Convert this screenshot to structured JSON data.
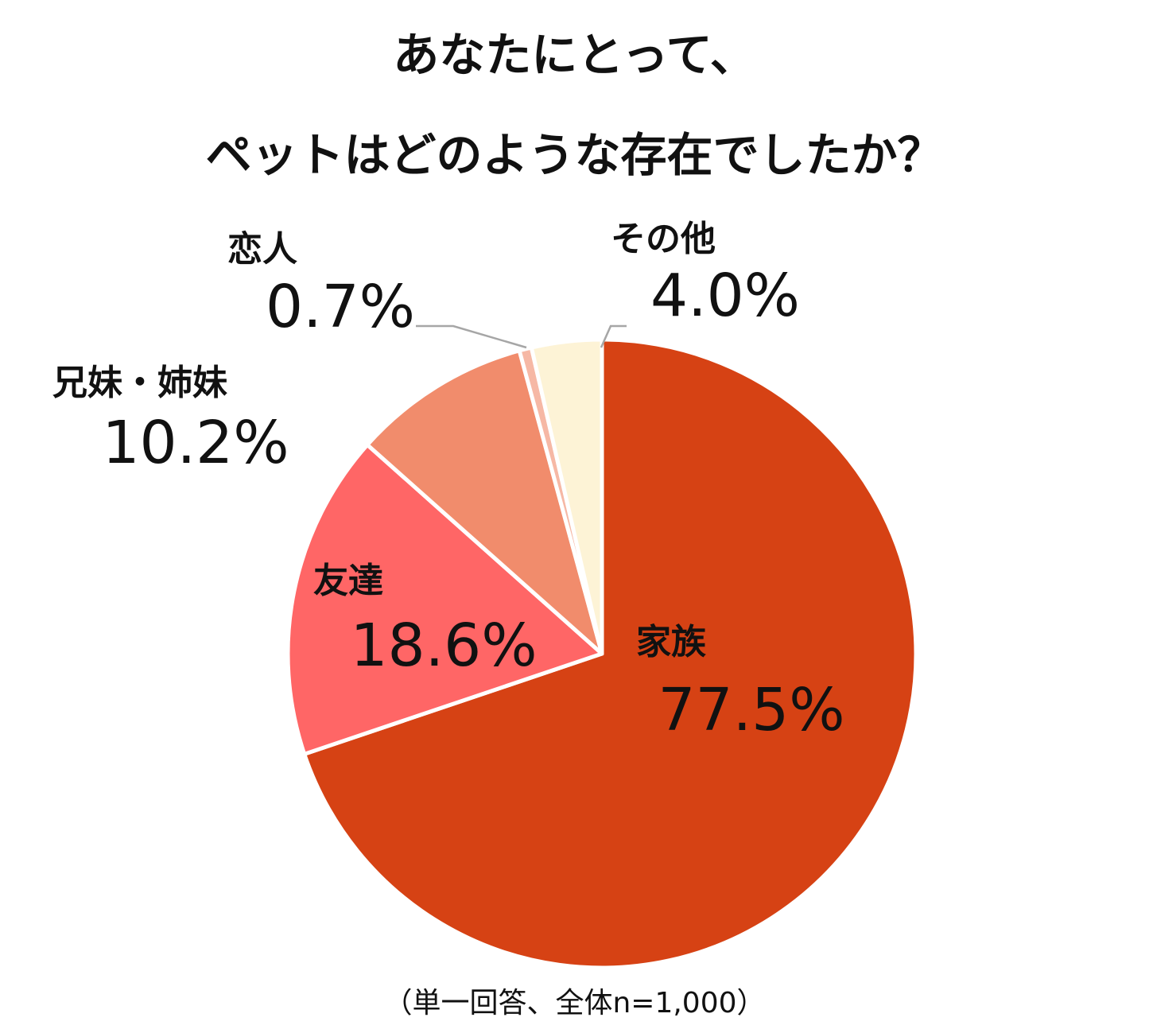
{
  "title_line1": "あなたにとって、",
  "title_line2": "ペットはどのような存在でしたか？",
  "note": "（単一回答、全体n=1,000）",
  "chart_data": {
    "type": "pie",
    "unit": "%",
    "slices": [
      {
        "label": "家族",
        "value": 77.5,
        "value_text": "77.5%",
        "color": "#D64214"
      },
      {
        "label": "友達",
        "value": 18.6,
        "value_text": "18.6%",
        "color": "#FF6666"
      },
      {
        "label": "兄妹・姉妹",
        "value": 10.2,
        "value_text": "10.2%",
        "color": "#F18C6C"
      },
      {
        "label": "恋人",
        "value": 0.7,
        "value_text": "0.7%",
        "color": "#F6B8A5"
      },
      {
        "label": "その他",
        "value": 4.0,
        "value_text": "4.0%",
        "color": "#FDF3D6"
      }
    ]
  }
}
